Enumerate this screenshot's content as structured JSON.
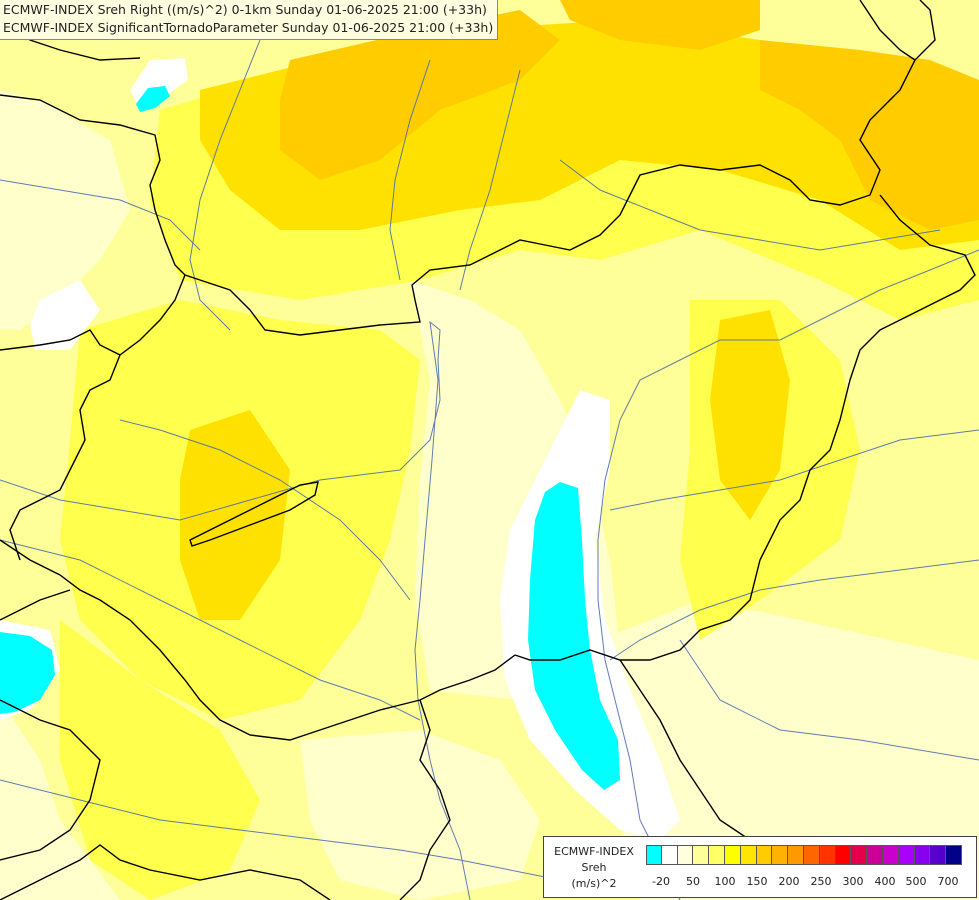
{
  "titles": {
    "line1": "ECMWF-INDEX Sreh Right ((m/s)^2) 0-1km Sunday 01-06-2025 21:00 (+33h)",
    "line2": "ECMWF-INDEX SignificantTornadoParameter Sunday 01-06-2025 21:00 (+33h)"
  },
  "legend": {
    "model": "ECMWF-INDEX",
    "parameter": "Sreh",
    "unit": "(m/s)^2",
    "colors": [
      "#00ffff",
      "#ffffff",
      "#ffffe0",
      "#ffff99",
      "#ffff66",
      "#ffff00",
      "#ffe600",
      "#ffcc00",
      "#ffb300",
      "#ff9900",
      "#ff6600",
      "#ff3300",
      "#ff0000",
      "#e6004c",
      "#cc0099",
      "#cc00cc",
      "#aa00ff",
      "#8800ee",
      "#5500cc",
      "#000088"
    ],
    "ticks": [
      "-20",
      "50",
      "100",
      "150",
      "200",
      "250",
      "300",
      "400",
      "500",
      "700"
    ]
  },
  "palette": {
    "pale": "#ffffcc",
    "light": "#ffff99",
    "yellow": "#ffff4d",
    "gold": "#ffe100",
    "orange": "#ffcc00",
    "cyan": "#00ffff",
    "white": "#ffffff",
    "border": "#000000",
    "river": "#4466aa"
  }
}
